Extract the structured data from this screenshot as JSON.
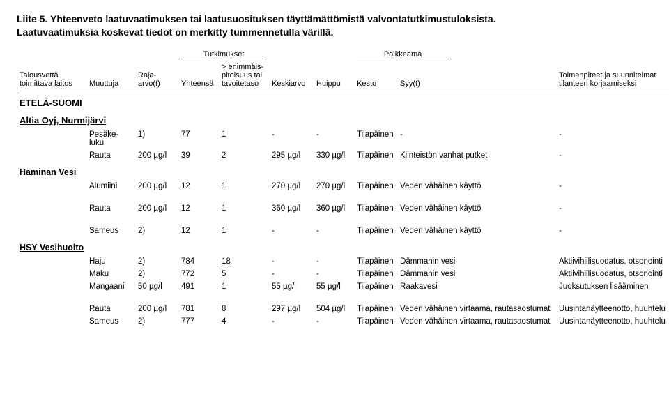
{
  "title_line1": "Liite 5. Yhteenveto laatuvaatimuksen tai laatusuosituksen täyttämättömistä valvontatutkimustuloksista.",
  "title_line2": "Laatuvaatimuksia koskevat tiedot on merkitty tummennetulla värillä.",
  "group_tutkimukset": "Tutkimukset",
  "group_poikkeama": "Poikkeama",
  "hdr": {
    "c0": "Talousvettä toimittava laitos",
    "c1": "Muuttuja",
    "c2": "Raja-arvo(t)",
    "c3": "Yhteensä",
    "c4": "> enimmäis-pitoisuus tai tavoitetaso",
    "c5": "Keskiarvo",
    "c6": "Huippu",
    "c7": "Kesto",
    "c8": "Syy(t)",
    "c10": "Toimenpiteet ja suunnitelmat tilanteen korjaamiseksi"
  },
  "region": "ETELÄ-SUOMI",
  "sections": {
    "altia": "Altia Oyj, Nurmijärvi",
    "haminan": "Haminan Vesi",
    "hsy": "HSY Vesihuolto"
  },
  "rows": {
    "a1": {
      "c1": "Pesäke-luku",
      "c2": "1)",
      "c3": "77",
      "c4": "1",
      "c5": "-",
      "c6": "-",
      "c7": "Tilapäinen",
      "c8": "-",
      "c10": "-"
    },
    "a2": {
      "c1": "Rauta",
      "c2": "200 µg/l",
      "c3": "39",
      "c4": "2",
      "c5": "295 µg/l",
      "c6": "330 µg/l",
      "c7": "Tilapäinen",
      "c8": "Kiinteistön vanhat putket",
      "c10": "-"
    },
    "h1": {
      "c1": "Alumiini",
      "c2": "200 µg/l",
      "c3": "12",
      "c4": "1",
      "c5": "270 µg/l",
      "c6": "270 µg/l",
      "c7": "Tilapäinen",
      "c8": "Veden vähäinen käyttö",
      "c10": "-"
    },
    "h2": {
      "c1": "Rauta",
      "c2": "200 µg/l",
      "c3": "12",
      "c4": "1",
      "c5": "360 µg/l",
      "c6": "360 µg/l",
      "c7": "Tilapäinen",
      "c8": "Veden vähäinen käyttö",
      "c10": "-"
    },
    "h3": {
      "c1": "Sameus",
      "c2": "2)",
      "c3": "12",
      "c4": "1",
      "c5": "-",
      "c6": "-",
      "c7": "Tilapäinen",
      "c8": "Veden vähäinen käyttö",
      "c10": "-"
    },
    "s1": {
      "c1": "Haju",
      "c2": "2)",
      "c3": "784",
      "c4": "18",
      "c5": "-",
      "c6": "-",
      "c7": "Tilapäinen",
      "c8": "Dämmanin vesi",
      "c10": "Aktiivihiilisuodatus, otsonointi"
    },
    "s2": {
      "c1": "Maku",
      "c2": "2)",
      "c3": "772",
      "c4": "5",
      "c5": "-",
      "c6": "-",
      "c7": "Tilapäinen",
      "c8": "Dämmanin vesi",
      "c10": "Aktiivihiilisuodatus, otsonointi"
    },
    "s3": {
      "c1": "Mangaani",
      "c2": "50 µg/l",
      "c3": "491",
      "c4": "1",
      "c5": "55 µg/l",
      "c6": "55 µg/l",
      "c7": "Tilapäinen",
      "c8": "Raakavesi",
      "c10": "Juoksutuksen lisääminen"
    },
    "s4": {
      "c1": "Rauta",
      "c2": "200 µg/l",
      "c3": "781",
      "c4": "8",
      "c5": "297 µg/l",
      "c6": "504 µg/l",
      "c7": "Tilapäinen",
      "c8": "Veden vähäinen virtaama, rautasaostumat",
      "c10": "Uusintanäytteenotto, huuhtelu"
    },
    "s5": {
      "c1": "Sameus",
      "c2": "2)",
      "c3": "777",
      "c4": "4",
      "c5": "-",
      "c6": "-",
      "c7": "Tilapäinen",
      "c8": "Veden vähäinen virtaama, rautasaostumat",
      "c10": "Uusintanäytteenotto, huuhtelu"
    }
  }
}
